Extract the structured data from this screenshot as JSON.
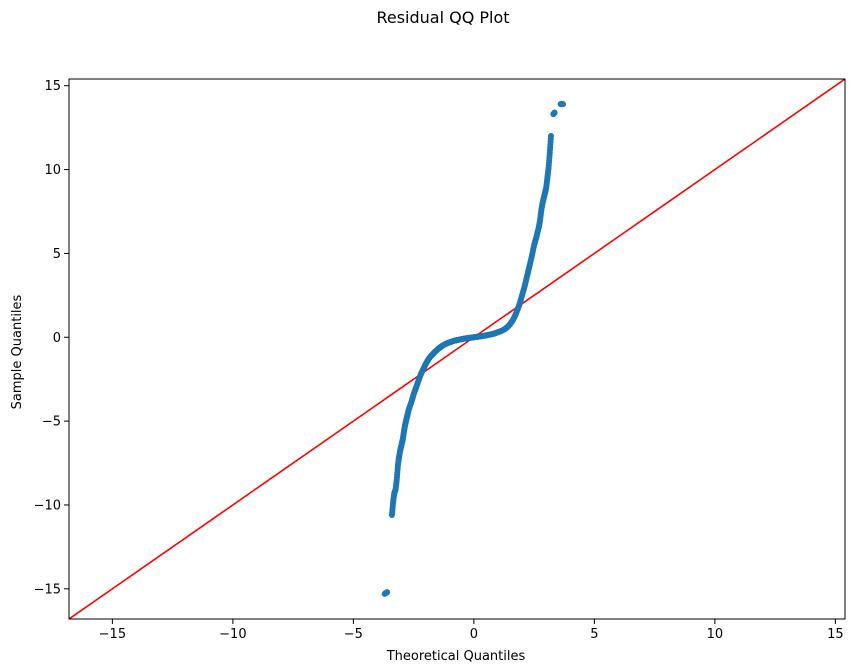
{
  "chart_data": {
    "type": "scatter",
    "title": "Residual QQ Plot",
    "xlabel": "Theoretical Quantiles",
    "ylabel": "Sample Quantiles",
    "xlim": [
      -16.8,
      15.4
    ],
    "ylim": [
      -16.8,
      15.4
    ],
    "xticks": [
      -15,
      -10,
      -5,
      0,
      5,
      10,
      15
    ],
    "yticks": [
      -15,
      -10,
      -5,
      0,
      5,
      10,
      15
    ],
    "xtick_labels": [
      "−15",
      "−10",
      "−5",
      "0",
      "5",
      "10",
      "15"
    ],
    "ytick_labels": [
      "−15",
      "−10",
      "−5",
      "0",
      "5",
      "10",
      "15"
    ],
    "grid": false,
    "point_color": "#1f77b4",
    "reference_line": {
      "color": "#ff0000",
      "slope": 1,
      "intercept": 0
    },
    "points_x": [
      -3.7,
      -3.6,
      -3.4,
      -3.35,
      -3.3,
      -3.25,
      -3.2,
      -3.15,
      -3.1,
      -3.05,
      -3.0,
      -2.95,
      -2.9,
      -2.85,
      -2.8,
      -2.75,
      -2.7,
      -2.6,
      -2.5,
      -2.4,
      -2.3,
      -2.2,
      -2.1,
      -2.0,
      -1.9,
      -1.8,
      -1.7,
      -1.6,
      -1.5,
      -1.4,
      -1.3,
      -1.2,
      -1.1,
      -1.0,
      -0.9,
      -0.8,
      -0.7,
      -0.6,
      -0.5,
      -0.4,
      -0.3,
      -0.2,
      -0.1,
      0.0,
      0.1,
      0.2,
      0.3,
      0.4,
      0.5,
      0.6,
      0.7,
      0.8,
      0.9,
      1.0,
      1.1,
      1.2,
      1.3,
      1.4,
      1.5,
      1.6,
      1.7,
      1.8,
      1.9,
      2.0,
      2.1,
      2.2,
      2.3,
      2.4,
      2.5,
      2.6,
      2.7,
      2.75,
      2.8,
      2.85,
      2.9,
      2.95,
      3.0,
      3.05,
      3.1,
      3.15,
      3.2,
      3.3,
      3.35,
      3.6,
      3.7
    ],
    "points_y": [
      -15.3,
      -15.2,
      -10.6,
      -9.8,
      -9.3,
      -9.1,
      -8.5,
      -7.6,
      -7.1,
      -6.7,
      -6.4,
      -6.1,
      -5.6,
      -5.2,
      -4.9,
      -4.6,
      -4.3,
      -3.9,
      -3.4,
      -3.0,
      -2.6,
      -2.2,
      -1.9,
      -1.6,
      -1.35,
      -1.15,
      -1.0,
      -0.85,
      -0.72,
      -0.6,
      -0.5,
      -0.42,
      -0.35,
      -0.3,
      -0.25,
      -0.2,
      -0.17,
      -0.14,
      -0.11,
      -0.08,
      -0.06,
      -0.04,
      -0.02,
      0.0,
      0.02,
      0.04,
      0.06,
      0.08,
      0.11,
      0.14,
      0.17,
      0.2,
      0.25,
      0.3,
      0.35,
      0.42,
      0.5,
      0.62,
      0.78,
      0.98,
      1.25,
      1.6,
      2.0,
      2.5,
      3.0,
      3.6,
      4.2,
      4.8,
      5.5,
      6.0,
      6.6,
      7.0,
      7.6,
      8.0,
      8.3,
      8.6,
      8.9,
      9.5,
      10.1,
      11.0,
      12.0,
      13.3,
      13.4,
      13.9,
      13.9
    ]
  }
}
